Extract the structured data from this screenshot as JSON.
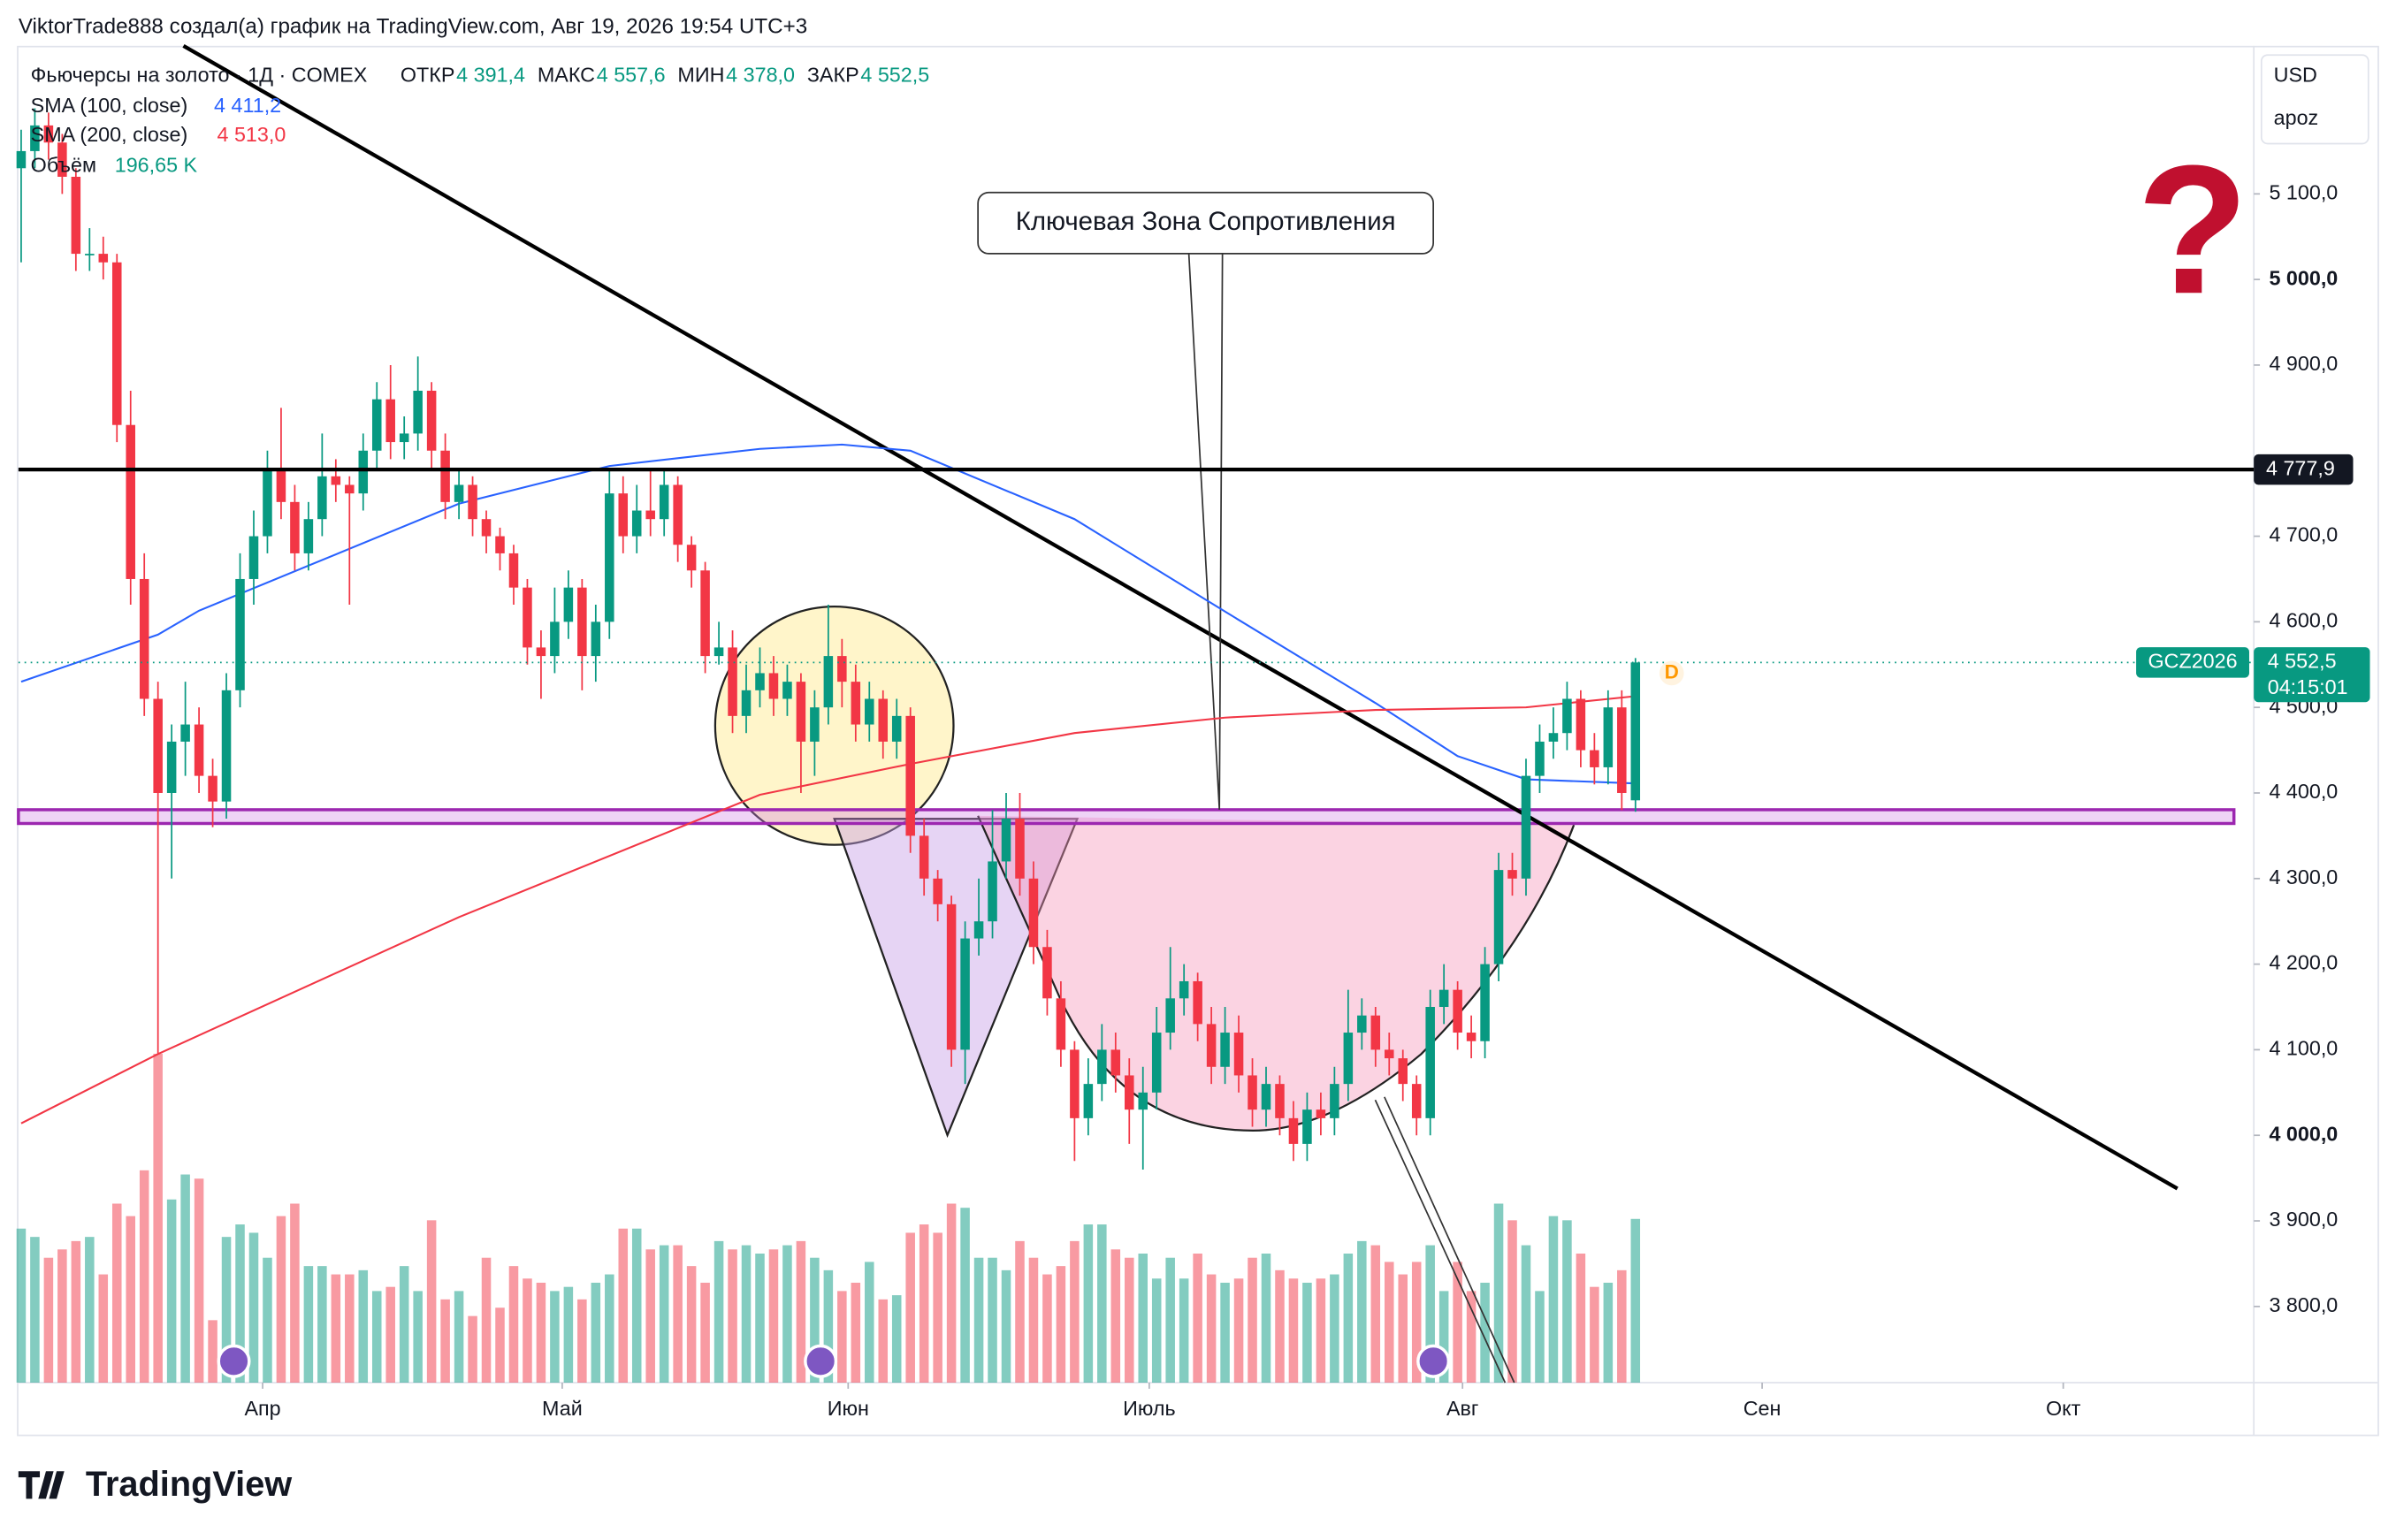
{
  "header": "ViktorTrade888 создал(а) график на TradingView.com, Авг 19, 2026 19:54 UTC+3",
  "brand": "TradingView",
  "chart_data": {
    "type": "candlestick",
    "title": "Фьючерсы на золото · 1Д · COMEX",
    "ohlc_legend": [
      {
        "name": "ОТКР",
        "label": "4 391,4"
      },
      {
        "name": "МАКС",
        "label": "4 557,6"
      },
      {
        "name": "МИН",
        "label": "4 378,0"
      },
      {
        "name": "ЗАКР",
        "label": "4 552,5"
      }
    ],
    "currency": "USD",
    "scale_mode": "apoz",
    "up_color": "#089981",
    "down_color": "#f23645",
    "ohlc": [
      [
        5130,
        5175,
        5020,
        5150
      ],
      [
        5150,
        5200,
        5130,
        5180
      ],
      [
        5180,
        5195,
        5140,
        5160
      ],
      [
        5160,
        5170,
        5100,
        5120
      ],
      [
        5120,
        5130,
        5010,
        5030
      ],
      [
        5030,
        5060,
        5010,
        5030
      ],
      [
        5030,
        5050,
        5000,
        5020
      ],
      [
        5020,
        5030,
        4810,
        4830
      ],
      [
        4830,
        4870,
        4620,
        4650
      ],
      [
        4650,
        4680,
        4490,
        4510
      ],
      [
        4510,
        4530,
        4095,
        4400
      ],
      [
        4400,
        4480,
        4300,
        4460
      ],
      [
        4460,
        4530,
        4420,
        4480
      ],
      [
        4480,
        4500,
        4400,
        4420
      ],
      [
        4420,
        4440,
        4360,
        4390
      ],
      [
        4390,
        4540,
        4370,
        4520
      ],
      [
        4520,
        4680,
        4500,
        4650
      ],
      [
        4650,
        4730,
        4620,
        4700
      ],
      [
        4700,
        4800,
        4680,
        4780
      ],
      [
        4780,
        4850,
        4720,
        4740
      ],
      [
        4740,
        4760,
        4660,
        4680
      ],
      [
        4680,
        4740,
        4660,
        4720
      ],
      [
        4720,
        4820,
        4700,
        4770
      ],
      [
        4770,
        4790,
        4740,
        4760
      ],
      [
        4760,
        4770,
        4620,
        4750
      ],
      [
        4750,
        4820,
        4730,
        4800
      ],
      [
        4800,
        4880,
        4780,
        4860
      ],
      [
        4860,
        4900,
        4790,
        4810
      ],
      [
        4810,
        4840,
        4790,
        4820
      ],
      [
        4820,
        4910,
        4800,
        4870
      ],
      [
        4870,
        4880,
        4780,
        4800
      ],
      [
        4800,
        4820,
        4720,
        4740
      ],
      [
        4740,
        4780,
        4720,
        4760
      ],
      [
        4760,
        4770,
        4700,
        4720
      ],
      [
        4720,
        4730,
        4680,
        4700
      ],
      [
        4700,
        4710,
        4660,
        4680
      ],
      [
        4680,
        4690,
        4620,
        4640
      ],
      [
        4640,
        4650,
        4550,
        4570
      ],
      [
        4570,
        4590,
        4510,
        4560
      ],
      [
        4560,
        4640,
        4540,
        4600
      ],
      [
        4600,
        4660,
        4580,
        4640
      ],
      [
        4640,
        4650,
        4520,
        4560
      ],
      [
        4560,
        4620,
        4530,
        4600
      ],
      [
        4600,
        4780,
        4580,
        4750
      ],
      [
        4750,
        4770,
        4680,
        4700
      ],
      [
        4700,
        4760,
        4680,
        4730
      ],
      [
        4730,
        4780,
        4700,
        4720
      ],
      [
        4720,
        4780,
        4700,
        4760
      ],
      [
        4760,
        4770,
        4670,
        4690
      ],
      [
        4690,
        4700,
        4640,
        4660
      ],
      [
        4660,
        4670,
        4540,
        4560
      ],
      [
        4560,
        4600,
        4550,
        4570
      ],
      [
        4570,
        4590,
        4470,
        4490
      ],
      [
        4490,
        4550,
        4470,
        4520
      ],
      [
        4520,
        4570,
        4500,
        4540
      ],
      [
        4540,
        4560,
        4490,
        4510
      ],
      [
        4510,
        4550,
        4490,
        4530
      ],
      [
        4530,
        4540,
        4400,
        4460
      ],
      [
        4460,
        4520,
        4420,
        4500
      ],
      [
        4500,
        4620,
        4480,
        4560
      ],
      [
        4560,
        4580,
        4500,
        4530
      ],
      [
        4530,
        4550,
        4460,
        4480
      ],
      [
        4480,
        4530,
        4460,
        4510
      ],
      [
        4510,
        4520,
        4440,
        4460
      ],
      [
        4460,
        4510,
        4440,
        4490
      ],
      [
        4490,
        4500,
        4330,
        4350
      ],
      [
        4350,
        4370,
        4280,
        4300
      ],
      [
        4300,
        4310,
        4250,
        4270
      ],
      [
        4270,
        4280,
        4080,
        4100
      ],
      [
        4100,
        4250,
        4060,
        4230
      ],
      [
        4230,
        4300,
        4210,
        4250
      ],
      [
        4250,
        4380,
        4230,
        4320
      ],
      [
        4320,
        4400,
        4300,
        4370
      ],
      [
        4370,
        4400,
        4280,
        4300
      ],
      [
        4300,
        4320,
        4200,
        4220
      ],
      [
        4220,
        4240,
        4140,
        4160
      ],
      [
        4160,
        4180,
        4080,
        4100
      ],
      [
        4100,
        4110,
        3970,
        4020
      ],
      [
        4020,
        4090,
        4000,
        4060
      ],
      [
        4060,
        4130,
        4040,
        4100
      ],
      [
        4100,
        4120,
        4050,
        4070
      ],
      [
        4070,
        4090,
        3990,
        4030
      ],
      [
        4030,
        4080,
        3960,
        4050
      ],
      [
        4050,
        4150,
        4030,
        4120
      ],
      [
        4120,
        4220,
        4100,
        4160
      ],
      [
        4160,
        4200,
        4140,
        4180
      ],
      [
        4180,
        4190,
        4110,
        4130
      ],
      [
        4130,
        4150,
        4060,
        4080
      ],
      [
        4080,
        4150,
        4060,
        4120
      ],
      [
        4120,
        4140,
        4050,
        4070
      ],
      [
        4070,
        4090,
        4010,
        4030
      ],
      [
        4030,
        4080,
        4010,
        4060
      ],
      [
        4060,
        4070,
        4000,
        4020
      ],
      [
        4020,
        4040,
        3970,
        3990
      ],
      [
        3990,
        4050,
        3970,
        4030
      ],
      [
        4030,
        4050,
        4000,
        4020
      ],
      [
        4020,
        4080,
        4000,
        4060
      ],
      [
        4060,
        4170,
        4040,
        4120
      ],
      [
        4120,
        4160,
        4100,
        4140
      ],
      [
        4140,
        4150,
        4080,
        4100
      ],
      [
        4100,
        4120,
        4070,
        4090
      ],
      [
        4090,
        4100,
        4040,
        4060
      ],
      [
        4060,
        4070,
        4000,
        4020
      ],
      [
        4020,
        4170,
        4000,
        4150
      ],
      [
        4150,
        4200,
        4130,
        4170
      ],
      [
        4170,
        4180,
        4100,
        4120
      ],
      [
        4120,
        4140,
        4090,
        4110
      ],
      [
        4110,
        4220,
        4090,
        4200
      ],
      [
        4200,
        4330,
        4180,
        4310
      ],
      [
        4310,
        4330,
        4280,
        4300
      ],
      [
        4300,
        4440,
        4280,
        4420
      ],
      [
        4420,
        4480,
        4400,
        4460
      ],
      [
        4460,
        4500,
        4440,
        4470
      ],
      [
        4470,
        4530,
        4450,
        4510
      ],
      [
        4510,
        4520,
        4430,
        4450
      ],
      [
        4450,
        4470,
        4410,
        4430
      ],
      [
        4430,
        4520,
        4410,
        4500
      ],
      [
        4500,
        4520,
        4380,
        4400
      ],
      [
        4391.4,
        4557.6,
        4378,
        4552.5
      ]
    ],
    "volume": {
      "name": "Объём",
      "label": "196,65 K",
      "ylim": [
        0,
        400
      ],
      "values": [
        185,
        175,
        150,
        160,
        170,
        175,
        130,
        215,
        200,
        255,
        395,
        220,
        250,
        245,
        75,
        175,
        190,
        180,
        150,
        200,
        215,
        140,
        140,
        130,
        130,
        135,
        110,
        115,
        140,
        110,
        195,
        100,
        110,
        80,
        150,
        90,
        140,
        125,
        120,
        110,
        115,
        100,
        120,
        130,
        185,
        185,
        160,
        165,
        165,
        140,
        120,
        170,
        160,
        165,
        155,
        160,
        165,
        170,
        150,
        135,
        110,
        120,
        145,
        100,
        105,
        180,
        190,
        180,
        215,
        210,
        150,
        150,
        135,
        170,
        150,
        130,
        140,
        170,
        190,
        190,
        160,
        150,
        155,
        125,
        150,
        125,
        155,
        130,
        120,
        125,
        150,
        155,
        135,
        125,
        120,
        125,
        130,
        155,
        170,
        165,
        145,
        130,
        145,
        165,
        110,
        145,
        110,
        120,
        215,
        195,
        165,
        110,
        200,
        195,
        155,
        115,
        120,
        135,
        196.65
      ]
    },
    "sma": [
      {
        "name": "SMA (100, close)",
        "color": "#2962ff",
        "label": "4 411,2",
        "x": [
          0,
          10,
          13,
          32,
          43,
          54,
          60,
          65,
          77,
          88,
          99,
          105,
          110,
          118
        ],
        "values": [
          4530,
          4585,
          4613,
          4738,
          4782,
          4802,
          4807,
          4800,
          4720,
          4612,
          4505,
          4443,
          4416,
          4411.2
        ]
      },
      {
        "name": "SMA (200, close)",
        "color": "#f23645",
        "label": "4 513,0",
        "x": [
          0,
          10,
          32,
          54,
          65,
          77,
          88,
          99,
          110,
          118
        ],
        "values": [
          4014,
          4095,
          4255,
          4398,
          4434,
          4470,
          4488,
          4497,
          4500,
          4513
        ]
      }
    ],
    "xlim": [
      -0.2,
      163.2
    ],
    "xticks": [
      {
        "value": 17.65,
        "label": "Апр"
      },
      {
        "value": 39.55,
        "label": "Май"
      },
      {
        "value": 60.45,
        "label": "Июн"
      },
      {
        "value": 82.46,
        "label": "Июль"
      },
      {
        "value": 105.36,
        "label": "Авг"
      },
      {
        "value": 127.26,
        "label": "Сен"
      },
      {
        "value": 149.27,
        "label": "Окт"
      }
    ],
    "ylim": [
      3711,
      5273
    ],
    "yticks": [
      {
        "value": 3800,
        "label": "3 800,0"
      },
      {
        "value": 3900,
        "label": "3 900,0"
      },
      {
        "value": 4000,
        "label": "4 000,0"
      },
      {
        "value": 4100,
        "label": "4 100,0"
      },
      {
        "value": 4200,
        "label": "4 200,0"
      },
      {
        "value": 4300,
        "label": "4 300,0"
      },
      {
        "value": 4400,
        "label": "4 400,0"
      },
      {
        "value": 4500,
        "label": "4 500,0"
      },
      {
        "value": 4600,
        "label": "4 600,0"
      },
      {
        "value": 4700,
        "label": "4 700,0"
      },
      {
        "value": 4900,
        "label": "4 900,0"
      },
      {
        "value": 5000,
        "label": "5 000,0"
      },
      {
        "value": 5100,
        "label": "5 100,0"
      }
    ],
    "level": {
      "value": 4777.9,
      "label": "4 777,9"
    },
    "last_price": {
      "symbol": "GCZ2026",
      "value": 4552.5,
      "label": "4 552,5",
      "countdown": "04:15:01"
    },
    "dividend_marker": "D",
    "annotation": "Ключевая Зона Сопротивления",
    "question_mark": "?"
  }
}
